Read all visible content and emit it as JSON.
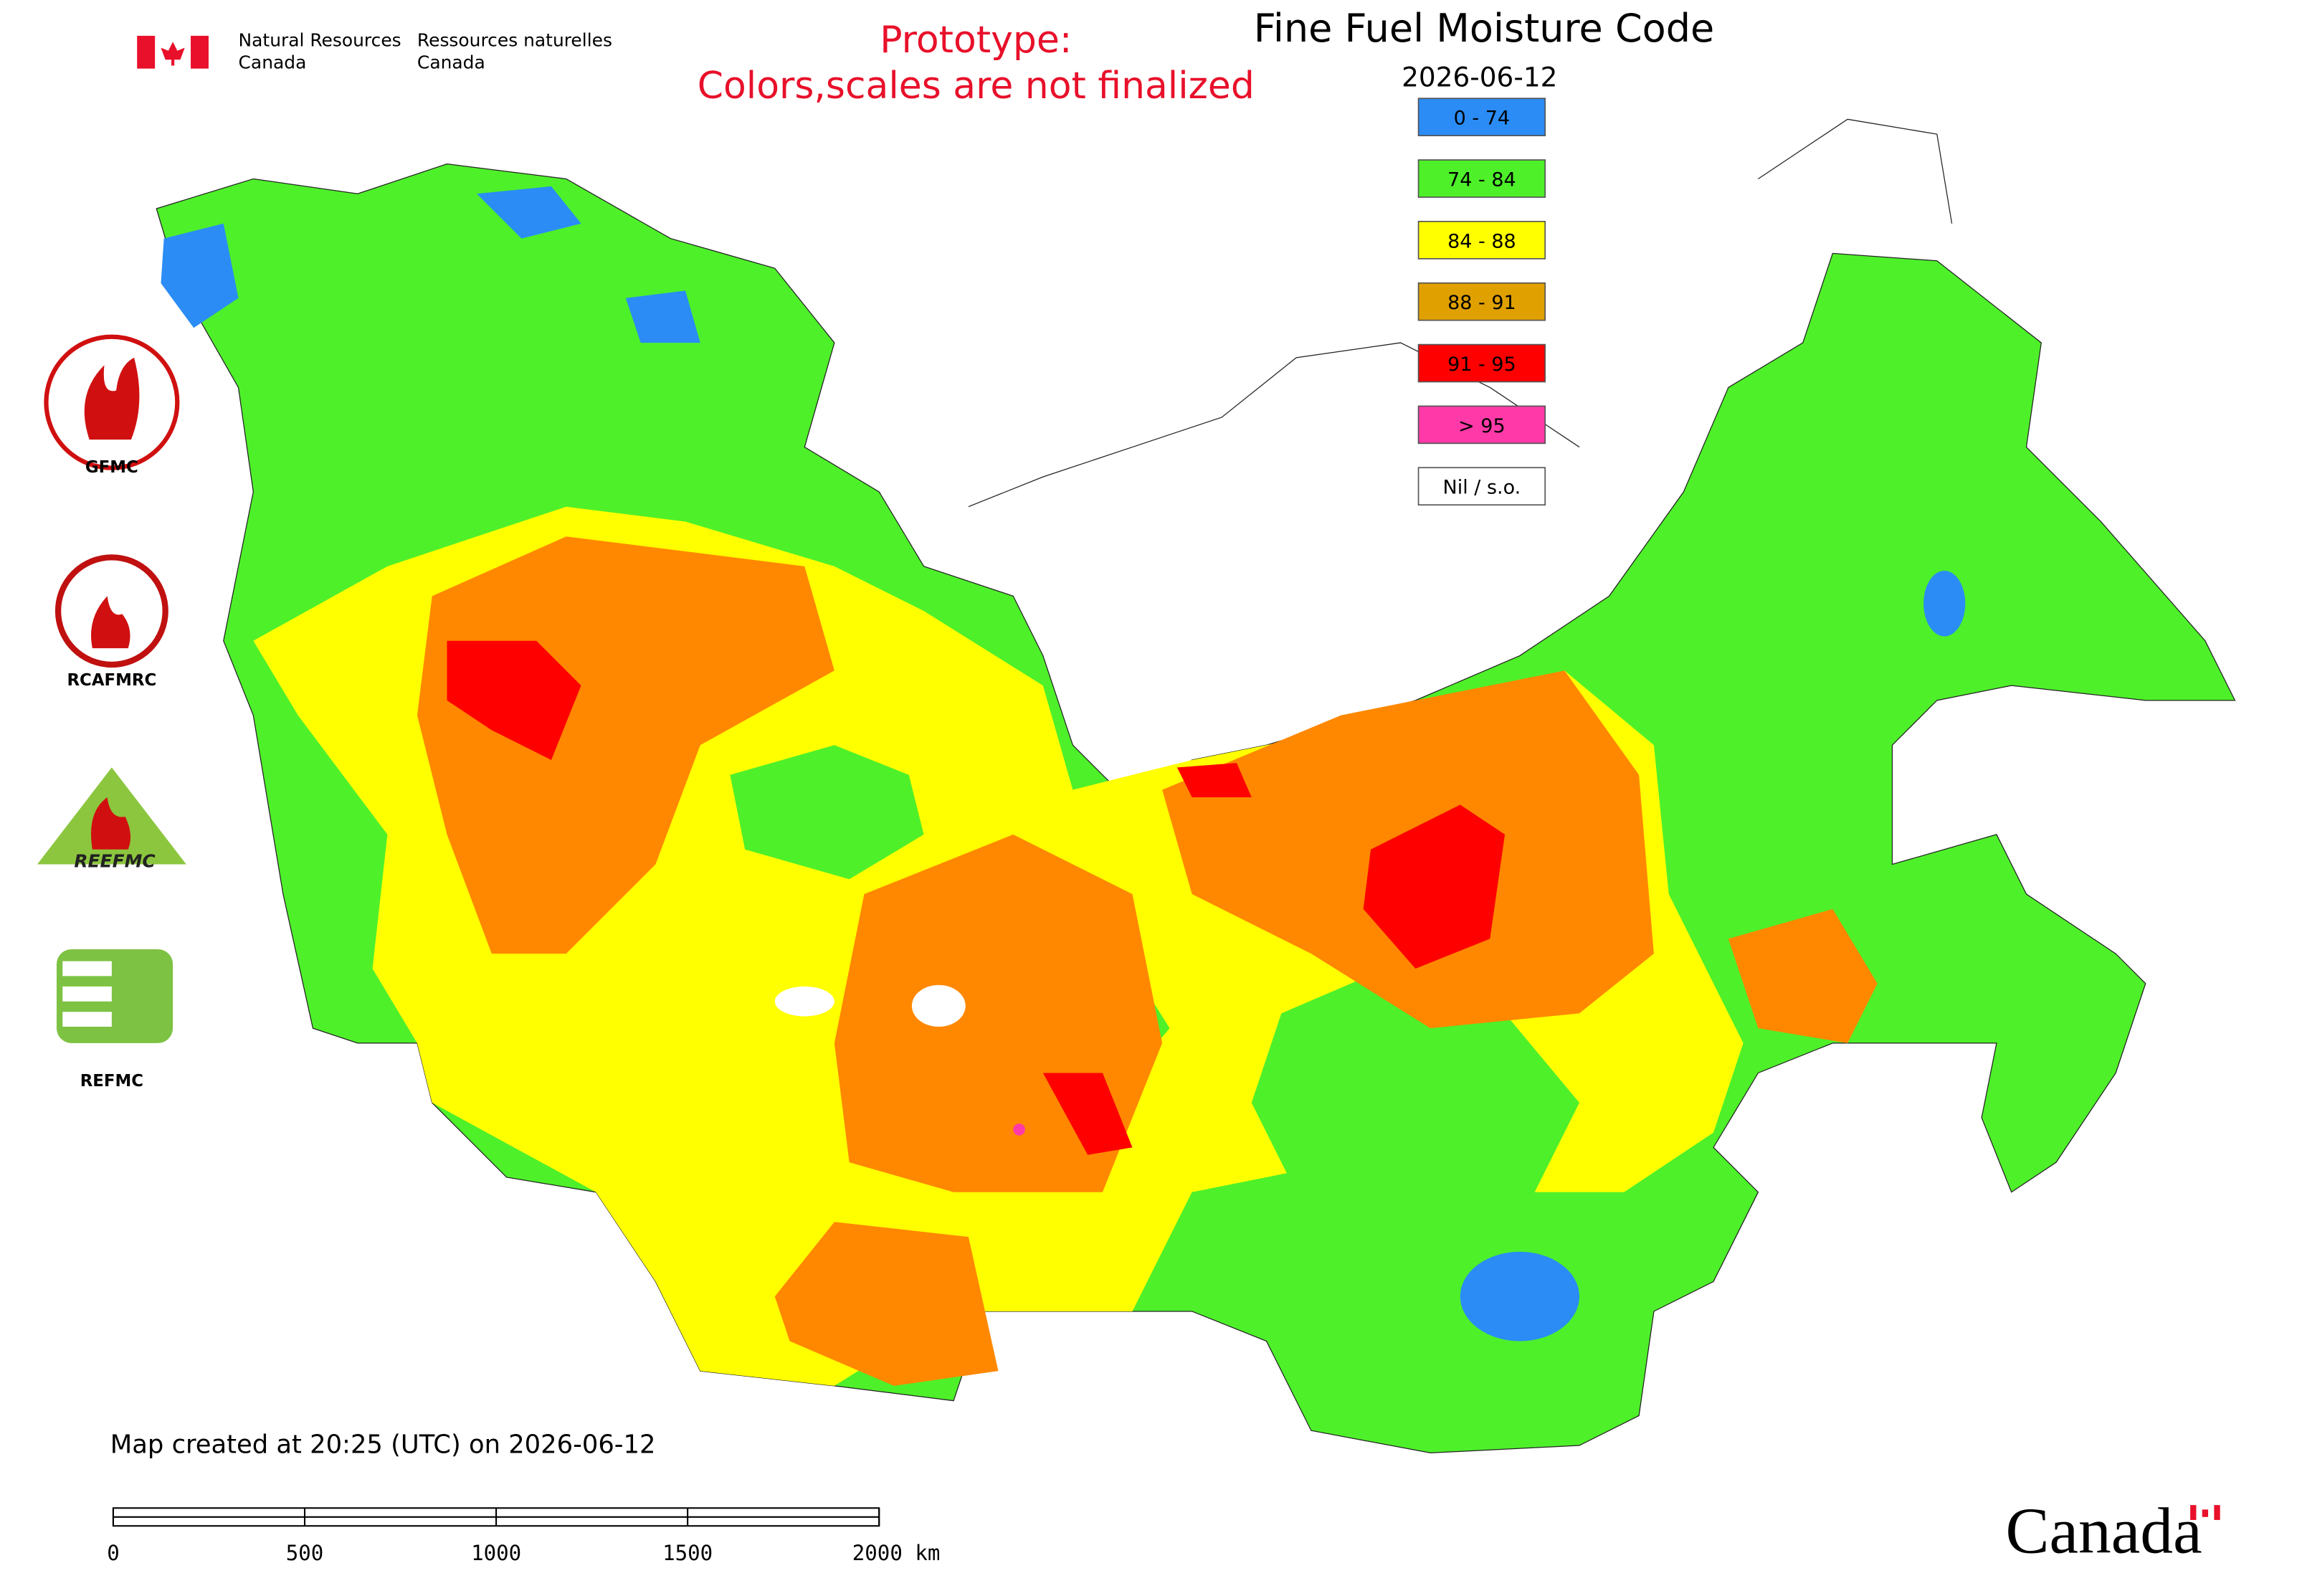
{
  "header": {
    "dept_en_1": "Natural Resources",
    "dept_en_2": "Canada",
    "dept_fr_1": "Ressources naturelles",
    "dept_fr_2": "Canada"
  },
  "notice": [
    "Prototype:",
    "Colors,scales are not finalized"
  ],
  "title": "Fine Fuel Moisture Code",
  "date": "2026-06-12",
  "legend": [
    {
      "label": "0 - 74",
      "color": "#2b8cf5"
    },
    {
      "label": "74 - 84",
      "color": "#4ef02a"
    },
    {
      "label": "84 - 88",
      "color": "#ffff00"
    },
    {
      "label": "88 - 91",
      "color": "#e0a000"
    },
    {
      "label": "91 - 95",
      "color": "#ff0000"
    },
    {
      "label": "> 95",
      "color": "#ff3aa8"
    },
    {
      "label": "Nil / s.o.",
      "color": "#ffffff"
    }
  ],
  "logos": [
    "GFMC",
    "RCAFMRC",
    "REEFMC",
    "REFMC"
  ],
  "footer": {
    "created": "Map created at 20:25 (UTC) on 2026-06-12",
    "wordmark": "Canada"
  },
  "scale_bar": [
    "0",
    "500",
    "1000",
    "1500",
    "2000 km"
  ]
}
